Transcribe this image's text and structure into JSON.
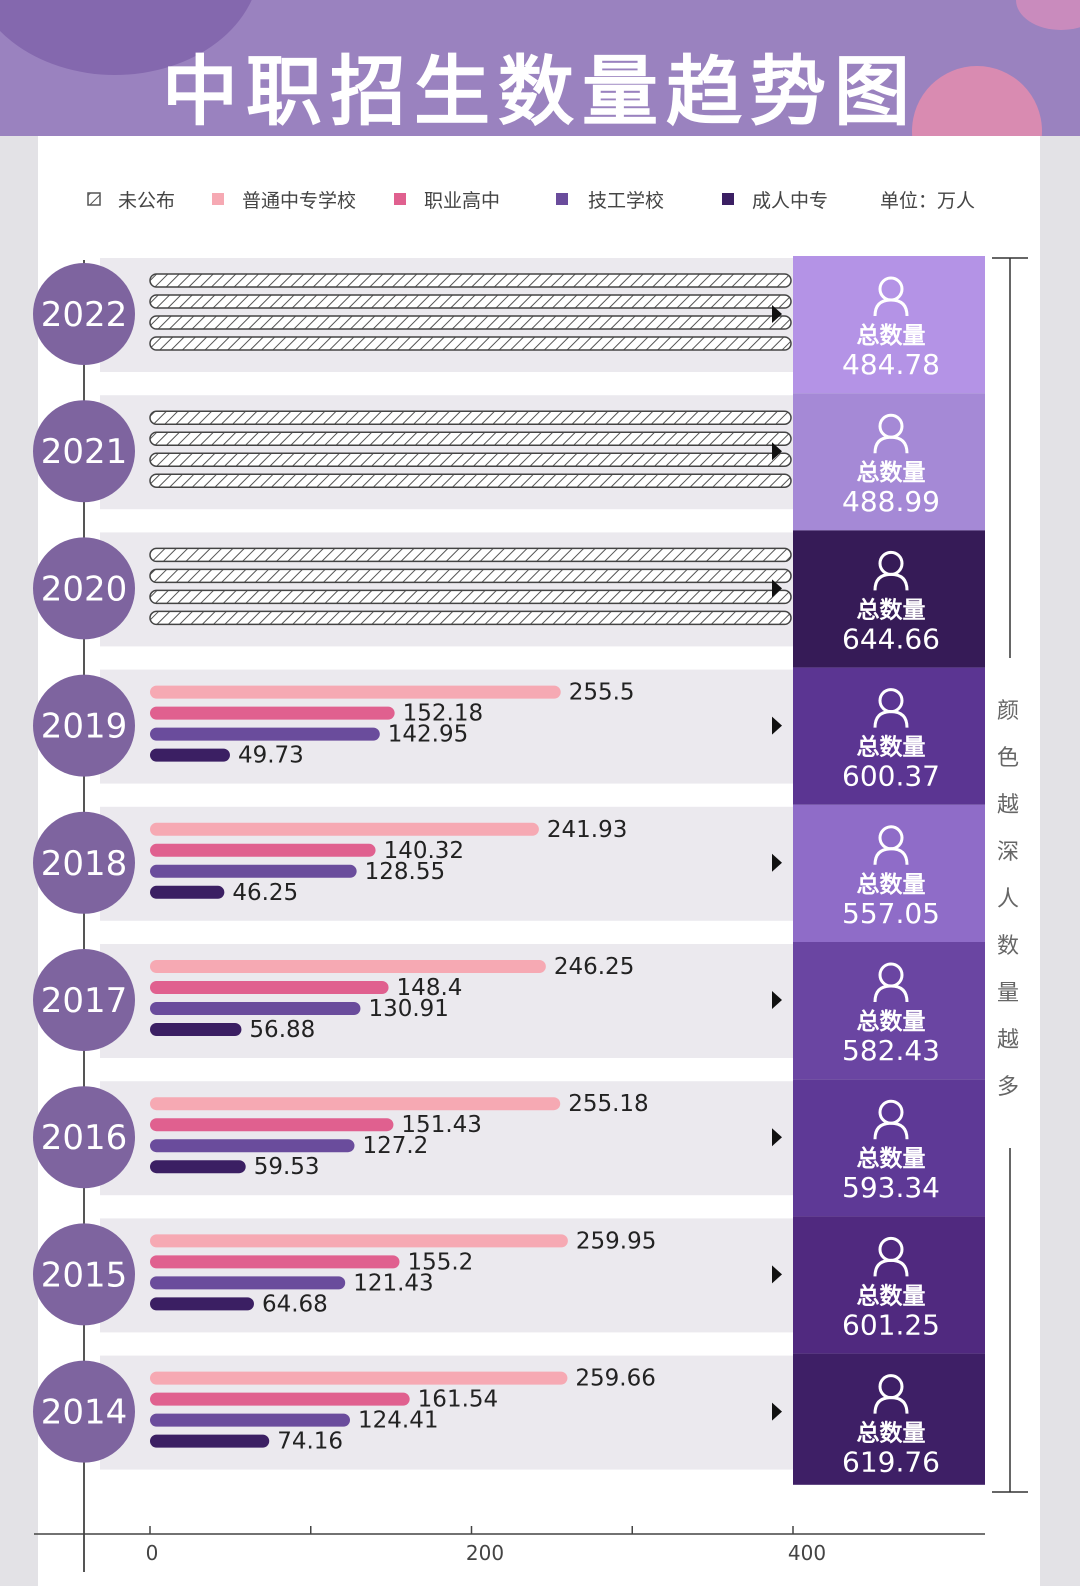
{
  "title": "中职招生数量趋势图",
  "legend": [
    {
      "label": "未公布",
      "key": "unpublished",
      "color": "hatch"
    },
    {
      "label": "普通中专学校",
      "key": "pt",
      "color": "#f6a9b3"
    },
    {
      "label": "职业高中",
      "key": "zg",
      "color": "#e0608f"
    },
    {
      "label": "技工学校",
      "key": "jg",
      "color": "#6a4c9c"
    },
    {
      "label": "成人中专",
      "key": "cr",
      "color": "#3b1f63"
    }
  ],
  "unit": "单位：万人",
  "total_label": "总数量",
  "side_note": [
    "颜",
    "色",
    "越",
    "深",
    "人",
    "数",
    "量",
    "越",
    "多"
  ],
  "colors": {
    "header": "#9a82bf",
    "row_bg": "#ebe9ee",
    "year_circle": "#7e649f"
  },
  "chart_data": {
    "type": "bar",
    "orientation": "horizontal",
    "unit": "万人",
    "xlim": [
      0,
      400
    ],
    "x_ticks": [
      0,
      200,
      400
    ],
    "series_names": [
      "普通中专学校",
      "职业高中",
      "技工学校",
      "成人中专"
    ],
    "years": [
      {
        "year": "2022",
        "published": false,
        "values": null,
        "total": "484.78",
        "total_color": "#b493e6"
      },
      {
        "year": "2021",
        "published": false,
        "values": null,
        "total": "488.99",
        "total_color": "#a589d6"
      },
      {
        "year": "2020",
        "published": false,
        "values": null,
        "total": "644.66",
        "total_color": "#361b57"
      },
      {
        "year": "2019",
        "published": true,
        "values": [
          255.5,
          152.18,
          142.95,
          49.73
        ],
        "labels": [
          "255.5",
          "152.18",
          "142.95",
          "49.73"
        ],
        "total": "600.37",
        "total_color": "#5b3592"
      },
      {
        "year": "2018",
        "published": true,
        "values": [
          241.93,
          140.32,
          128.55,
          46.25
        ],
        "labels": [
          "241.93",
          "140.32",
          "128.55",
          "46.25"
        ],
        "total": "557.05",
        "total_color": "#8f6cc8"
      },
      {
        "year": "2017",
        "published": true,
        "values": [
          246.25,
          148.4,
          130.91,
          56.88
        ],
        "labels": [
          "246.25",
          "148.4",
          "130.91",
          "56.88"
        ],
        "total": "582.43",
        "total_color": "#6a45a2"
      },
      {
        "year": "2016",
        "published": true,
        "values": [
          255.18,
          151.43,
          127.2,
          59.53
        ],
        "labels": [
          "255.18",
          "151.43",
          "127.2",
          "59.53"
        ],
        "total": "593.34",
        "total_color": "#5e3996"
      },
      {
        "year": "2015",
        "published": true,
        "values": [
          259.95,
          155.2,
          121.43,
          64.68
        ],
        "labels": [
          "259.95",
          "155.2",
          "121.43",
          "64.68"
        ],
        "total": "601.25",
        "total_color": "#50297f"
      },
      {
        "year": "2014",
        "published": true,
        "values": [
          259.66,
          161.54,
          124.41,
          74.16
        ],
        "labels": [
          "259.66",
          "161.54",
          "124.41",
          "74.16"
        ],
        "total": "619.76",
        "total_color": "#3e1f66"
      }
    ]
  }
}
